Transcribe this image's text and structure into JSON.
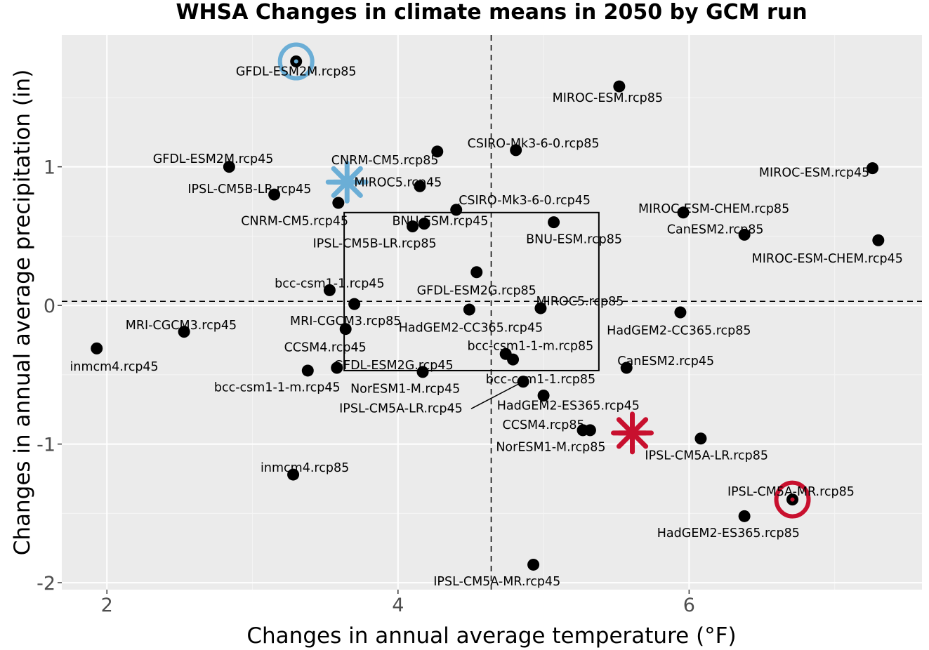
{
  "chart_data": {
    "type": "scatter",
    "title": "WHSA Changes in climate means in 2050 by GCM run",
    "xlabel": "Changes in annual average temperature (°F)",
    "ylabel": "Changes in annual average precipitation (in)",
    "xlim": [
      1.69,
      7.6
    ],
    "ylim": [
      -2.05,
      1.95
    ],
    "xticks": [
      2,
      4,
      6
    ],
    "xtick_labels": [
      "2",
      "4",
      "6"
    ],
    "yticks": [
      -2,
      -1,
      0,
      1
    ],
    "ytick_labels": [
      "-2",
      "-1",
      "0",
      "1"
    ],
    "grid": true,
    "background": "#ebebeb",
    "point_color": "#000000",
    "reference_lines": {
      "vertical_x": 4.64,
      "horizontal_y": 0.03,
      "style": "dashed"
    },
    "box": {
      "x": [
        3.63,
        5.38
      ],
      "y": [
        -0.47,
        0.67
      ]
    },
    "highlights": [
      {
        "name": "cool-wet-center",
        "shape": "asterisk",
        "x": 3.65,
        "y": 0.89,
        "color": "#6baed6"
      },
      {
        "name": "warm-dry-center",
        "shape": "asterisk",
        "x": 5.61,
        "y": -0.92,
        "color": "#c8102e"
      },
      {
        "name": "cool-wet-pick",
        "shape": "ring",
        "x": 3.3,
        "y": 1.76,
        "color": "#6baed6"
      },
      {
        "name": "warm-dry-pick",
        "shape": "ring",
        "x": 6.71,
        "y": -1.4,
        "color": "#c8102e"
      }
    ],
    "points": [
      {
        "label": "GFDL-ESM2M.rcp85",
        "x": 3.3,
        "y": 1.76,
        "lx": 3.3,
        "ly": 1.69,
        "anchor": "middle"
      },
      {
        "label": "MIROC-ESM.rcp85",
        "x": 5.52,
        "y": 1.58,
        "lx": 5.44,
        "ly": 1.5,
        "anchor": "middle"
      },
      {
        "label": "CSIRO-Mk3-6-0.rcp85",
        "x": 4.81,
        "y": 1.12,
        "lx": 4.93,
        "ly": 1.17,
        "anchor": "middle"
      },
      {
        "label": "CNRM-CM5.rcp85",
        "x": 4.27,
        "y": 1.11,
        "lx": 3.91,
        "ly": 1.05,
        "anchor": "middle"
      },
      {
        "label": "GFDL-ESM2M.rcp45",
        "x": 2.84,
        "y": 1.0,
        "lx": 2.73,
        "ly": 1.06,
        "anchor": "middle"
      },
      {
        "label": "MIROC-ESM.rcp45",
        "x": 7.26,
        "y": 0.99,
        "lx": 6.86,
        "ly": 0.96,
        "anchor": "middle"
      },
      {
        "label": "IPSL-CM5B-LR.rcp45",
        "x": 3.15,
        "y": 0.8,
        "lx": 2.98,
        "ly": 0.84,
        "anchor": "middle"
      },
      {
        "label": "MIROC5.rcp45",
        "x": 4.15,
        "y": 0.86,
        "lx": 4.0,
        "ly": 0.89,
        "anchor": "middle"
      },
      {
        "label": "CNRM-CM5.rcp45",
        "x": 3.59,
        "y": 0.74,
        "lx": 3.29,
        "ly": 0.61,
        "anchor": "middle"
      },
      {
        "label": "CSIRO-Mk3-6-0.rcp45",
        "x": 4.4,
        "y": 0.69,
        "lx": 4.87,
        "ly": 0.76,
        "anchor": "middle",
        "leader": true
      },
      {
        "label": "MIROC-ESM-CHEM.rcp85",
        "x": 5.96,
        "y": 0.67,
        "lx": 6.17,
        "ly": 0.7,
        "anchor": "middle"
      },
      {
        "label": "BNU-ESM.rcp45",
        "x": 4.18,
        "y": 0.59,
        "lx": 4.29,
        "ly": 0.61,
        "anchor": "middle"
      },
      {
        "label": "IPSL-CM5B-LR.rcp85",
        "x": 4.1,
        "y": 0.57,
        "lx": 3.84,
        "ly": 0.45,
        "anchor": "middle"
      },
      {
        "label": "BNU-ESM.rcp85",
        "x": 5.07,
        "y": 0.6,
        "lx": 5.21,
        "ly": 0.48,
        "anchor": "middle"
      },
      {
        "label": "CanESM2.rcp85",
        "x": 6.38,
        "y": 0.51,
        "lx": 6.18,
        "ly": 0.55,
        "anchor": "middle"
      },
      {
        "label": "MIROC-ESM-CHEM.rcp45",
        "x": 7.3,
        "y": 0.47,
        "lx": 6.95,
        "ly": 0.34,
        "anchor": "middle"
      },
      {
        "label": "GFDL-ESM2G.rcp85",
        "x": 4.54,
        "y": 0.24,
        "lx": 4.54,
        "ly": 0.11,
        "anchor": "middle"
      },
      {
        "label": "bcc-csm1-1.rcp45",
        "x": 3.53,
        "y": 0.11,
        "lx": 3.53,
        "ly": 0.16,
        "anchor": "middle"
      },
      {
        "label": "MRI-CGCM3.rcp85",
        "x": 3.7,
        "y": 0.01,
        "lx": 3.64,
        "ly": -0.11,
        "anchor": "middle"
      },
      {
        "label": "HadGEM2-CC365.rcp45",
        "x": 4.49,
        "y": -0.03,
        "lx": 4.5,
        "ly": -0.16,
        "anchor": "middle"
      },
      {
        "label": "MIROC5.rcp85",
        "x": 4.98,
        "y": -0.02,
        "lx": 5.25,
        "ly": 0.03,
        "anchor": "middle"
      },
      {
        "label": "HadGEM2-CC365.rcp85",
        "x": 5.94,
        "y": -0.05,
        "lx": 5.93,
        "ly": -0.18,
        "anchor": "middle"
      },
      {
        "label": "MRI-CGCM3.rcp45",
        "x": 2.53,
        "y": -0.19,
        "lx": 2.51,
        "ly": -0.14,
        "anchor": "middle"
      },
      {
        "label": "CCSM4.rcp45",
        "x": 3.64,
        "y": -0.17,
        "lx": 3.5,
        "ly": -0.3,
        "anchor": "middle"
      },
      {
        "label": "inmcm4.rcp45",
        "x": 1.93,
        "y": -0.31,
        "lx": 2.05,
        "ly": -0.44,
        "anchor": "middle"
      },
      {
        "label": "bcc-csm1-1-m.rcp85",
        "x": 4.74,
        "y": -0.35,
        "lx": 4.91,
        "ly": -0.29,
        "anchor": "middle"
      },
      {
        "label": "bcc-csm1-1.rcp85",
        "x": 4.79,
        "y": -0.39,
        "lx": 4.98,
        "ly": -0.53,
        "anchor": "middle"
      },
      {
        "label": "CanESM2.rcp45",
        "x": 5.57,
        "y": -0.45,
        "lx": 5.84,
        "ly": -0.4,
        "anchor": "middle"
      },
      {
        "label": "bcc-csm1-1-m.rcp45",
        "x": 3.38,
        "y": -0.47,
        "lx": 3.17,
        "ly": -0.59,
        "anchor": "middle"
      },
      {
        "label": "GFDL-ESM2G.rcp45",
        "x": 3.58,
        "y": -0.45,
        "lx": 3.97,
        "ly": -0.43,
        "anchor": "middle"
      },
      {
        "label": "NorESM1-M.rcp45",
        "x": 4.17,
        "y": -0.48,
        "lx": 4.05,
        "ly": -0.6,
        "anchor": "middle"
      },
      {
        "label": "IPSL-CM5A-LR.rcp45",
        "x": 4.86,
        "y": -0.55,
        "lx": 4.02,
        "ly": -0.74,
        "anchor": "middle",
        "leader": true
      },
      {
        "label": "HadGEM2-ES365.rcp45",
        "x": 5.0,
        "y": -0.65,
        "lx": 5.17,
        "ly": -0.72,
        "anchor": "middle"
      },
      {
        "label": "CCSM4.rcp85",
        "x": 5.27,
        "y": -0.9,
        "lx": 5.0,
        "ly": -0.86,
        "anchor": "middle"
      },
      {
        "label": "NorESM1-M.rcp85",
        "x": 5.32,
        "y": -0.9,
        "lx": 5.05,
        "ly": -1.02,
        "anchor": "middle"
      },
      {
        "label": "IPSL-CM5A-LR.rcp85",
        "x": 6.08,
        "y": -0.96,
        "lx": 6.12,
        "ly": -1.08,
        "anchor": "middle"
      },
      {
        "label": "inmcm4.rcp85",
        "x": 3.28,
        "y": -1.22,
        "lx": 3.36,
        "ly": -1.17,
        "anchor": "middle"
      },
      {
        "label": "IPSL-CM5A-MR.rcp85",
        "x": 6.71,
        "y": -1.4,
        "lx": 6.7,
        "ly": -1.34,
        "anchor": "middle"
      },
      {
        "label": "HadGEM2-ES365.rcp85",
        "x": 6.38,
        "y": -1.52,
        "lx": 6.27,
        "ly": -1.64,
        "anchor": "middle"
      },
      {
        "label": "IPSL-CM5A-MR.rcp45",
        "x": 4.93,
        "y": -1.87,
        "lx": 4.68,
        "ly": -1.99,
        "anchor": "middle"
      }
    ]
  }
}
